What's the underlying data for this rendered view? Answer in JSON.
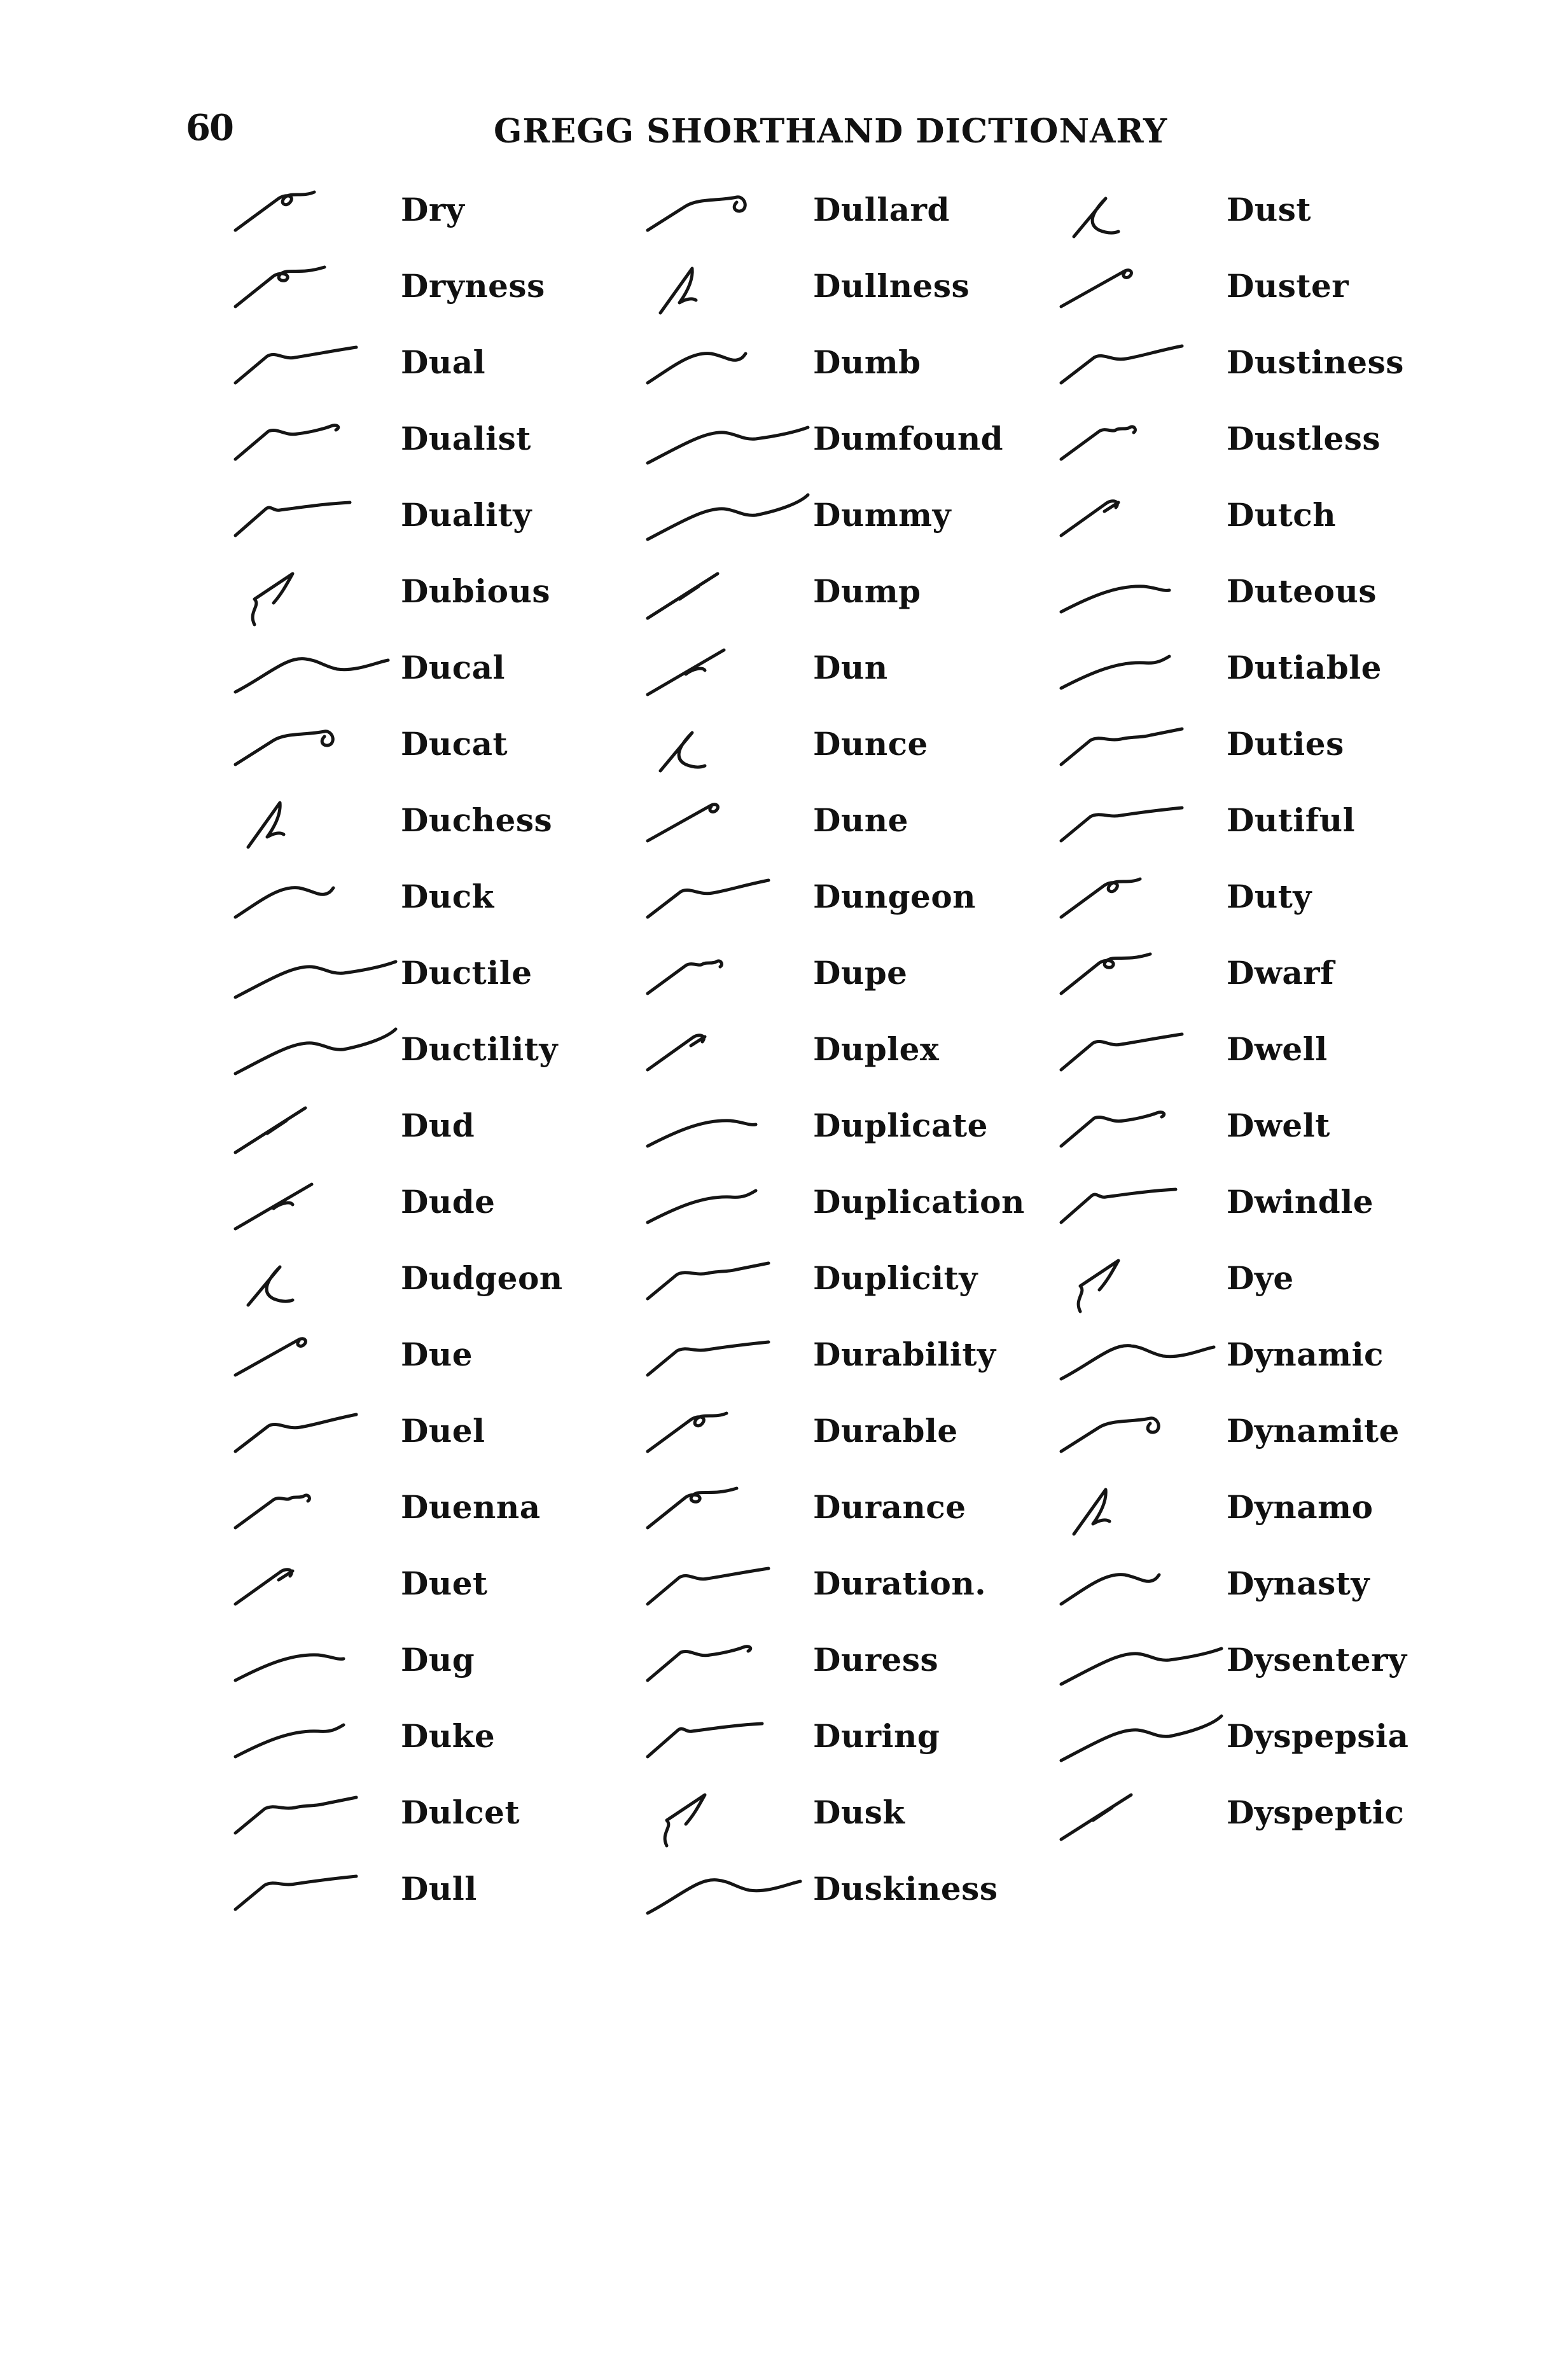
{
  "header": {
    "page_number": "60",
    "title": "GREGG SHORTHAND DICTIONARY"
  },
  "columns": [
    {
      "entries": [
        {
          "word": "Dry",
          "outline": "dry-outline-icon"
        },
        {
          "word": "Dryness",
          "outline": "dryness-outline-icon"
        },
        {
          "word": "Dual",
          "outline": "dual-outline-icon"
        },
        {
          "word": "Dualist",
          "outline": "dualist-outline-icon"
        },
        {
          "word": "Duality",
          "outline": "duality-outline-icon"
        },
        {
          "word": "Dubious",
          "outline": "dubious-outline-icon"
        },
        {
          "word": "Ducal",
          "outline": "ducal-outline-icon"
        },
        {
          "word": "Ducat",
          "outline": "ducat-outline-icon"
        },
        {
          "word": "Duchess",
          "outline": "duchess-outline-icon"
        },
        {
          "word": "Duck",
          "outline": "duck-outline-icon"
        },
        {
          "word": "Ductile",
          "outline": "ductile-outline-icon"
        },
        {
          "word": "Ductility",
          "outline": "ductility-outline-icon"
        },
        {
          "word": "Dud",
          "outline": "dud-outline-icon"
        },
        {
          "word": "Dude",
          "outline": "dude-outline-icon"
        },
        {
          "word": "Dudgeon",
          "outline": "dudgeon-outline-icon"
        },
        {
          "word": "Due",
          "outline": "due-outline-icon"
        },
        {
          "word": "Duel",
          "outline": "duel-outline-icon"
        },
        {
          "word": "Duenna",
          "outline": "duenna-outline-icon"
        },
        {
          "word": "Duet",
          "outline": "duet-outline-icon"
        },
        {
          "word": "Dug",
          "outline": "dug-outline-icon"
        },
        {
          "word": "Duke",
          "outline": "duke-outline-icon"
        },
        {
          "word": "Dulcet",
          "outline": "dulcet-outline-icon"
        },
        {
          "word": "Dull",
          "outline": "dull-outline-icon"
        }
      ]
    },
    {
      "entries": [
        {
          "word": "Dullard",
          "outline": "dullard-outline-icon"
        },
        {
          "word": "Dullness",
          "outline": "dullness-outline-icon"
        },
        {
          "word": "Dumb",
          "outline": "dumb-outline-icon"
        },
        {
          "word": "Dumfound",
          "outline": "dumfound-outline-icon"
        },
        {
          "word": "Dummy",
          "outline": "dummy-outline-icon"
        },
        {
          "word": "Dump",
          "outline": "dump-outline-icon"
        },
        {
          "word": "Dun",
          "outline": "dun-outline-icon"
        },
        {
          "word": "Dunce",
          "outline": "dunce-outline-icon"
        },
        {
          "word": "Dune",
          "outline": "dune-outline-icon"
        },
        {
          "word": "Dungeon",
          "outline": "dungeon-outline-icon"
        },
        {
          "word": "Dupe",
          "outline": "dupe-outline-icon"
        },
        {
          "word": "Duplex",
          "outline": "duplex-outline-icon"
        },
        {
          "word": "Duplicate",
          "outline": "duplicate-outline-icon"
        },
        {
          "word": "Duplication",
          "outline": "duplication-outline-icon"
        },
        {
          "word": "Duplicity",
          "outline": "duplicity-outline-icon"
        },
        {
          "word": "Durability",
          "outline": "durability-outline-icon"
        },
        {
          "word": "Durable",
          "outline": "durable-outline-icon"
        },
        {
          "word": "Durance",
          "outline": "durance-outline-icon"
        },
        {
          "word": "Duration.",
          "outline": "duration-outline-icon"
        },
        {
          "word": "Duress",
          "outline": "duress-outline-icon"
        },
        {
          "word": "During",
          "outline": "during-outline-icon"
        },
        {
          "word": "Dusk",
          "outline": "dusk-outline-icon"
        },
        {
          "word": "Duskiness",
          "outline": "duskiness-outline-icon"
        }
      ]
    },
    {
      "entries": [
        {
          "word": "Dust",
          "outline": "dust-outline-icon"
        },
        {
          "word": "Duster",
          "outline": "duster-outline-icon"
        },
        {
          "word": "Dustiness",
          "outline": "dustiness-outline-icon"
        },
        {
          "word": "Dustless",
          "outline": "dustless-outline-icon"
        },
        {
          "word": "Dutch",
          "outline": "dutch-outline-icon"
        },
        {
          "word": "Duteous",
          "outline": "duteous-outline-icon"
        },
        {
          "word": "Dutiable",
          "outline": "dutiable-outline-icon"
        },
        {
          "word": "Duties",
          "outline": "duties-outline-icon"
        },
        {
          "word": "Dutiful",
          "outline": "dutiful-outline-icon"
        },
        {
          "word": "Duty",
          "outline": "duty-outline-icon"
        },
        {
          "word": "Dwarf",
          "outline": "dwarf-outline-icon"
        },
        {
          "word": "Dwell",
          "outline": "dwell-outline-icon"
        },
        {
          "word": "Dwelt",
          "outline": "dwelt-outline-icon"
        },
        {
          "word": "Dwindle",
          "outline": "dwindle-outline-icon"
        },
        {
          "word": "Dye",
          "outline": "dye-outline-icon"
        },
        {
          "word": "Dynamic",
          "outline": "dynamic-outline-icon"
        },
        {
          "word": "Dynamite",
          "outline": "dynamite-outline-icon"
        },
        {
          "word": "Dynamo",
          "outline": "dynamo-outline-icon"
        },
        {
          "word": "Dynasty",
          "outline": "dynasty-outline-icon"
        },
        {
          "word": "Dysentery",
          "outline": "dysentery-outline-icon"
        },
        {
          "word": "Dyspepsia",
          "outline": "dyspepsia-outline-icon"
        },
        {
          "word": "Dyspeptic",
          "outline": "dyspeptic-outline-icon"
        }
      ]
    }
  ]
}
